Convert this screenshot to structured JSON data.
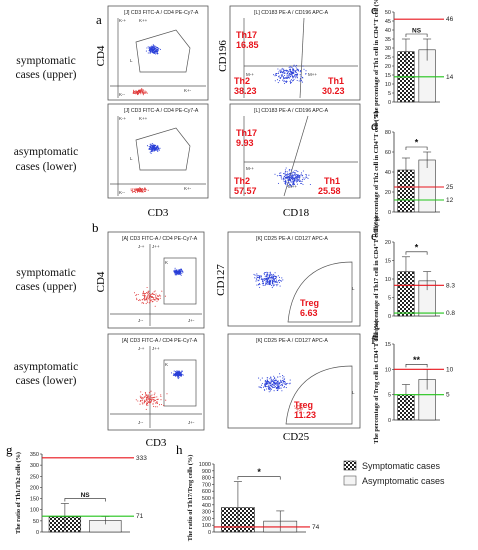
{
  "figure": {
    "colors": {
      "red": "#e8141c",
      "green": "#22c41a",
      "dot_blue": "#2a3fd8",
      "dot_red": "#e03a3a",
      "axis": "#333333",
      "box": "#444444"
    },
    "row_labels": {
      "sym_upper": [
        "symptomatic",
        "cases (upper)"
      ],
      "asym_lower": [
        "asymptomatic",
        "cases (lower)"
      ]
    },
    "panel_letters": {
      "a": "a",
      "b": "b",
      "c": "c",
      "d": "d",
      "e": "e",
      "f": "f",
      "g": "g",
      "h": "h"
    },
    "flow_a": {
      "plot1_title": "[J] CD3 FITC-A / CD4 PE-Cy7-A",
      "plot2_title": "[L] CD183 PE-A / CD196 APC-A",
      "plot3_title": "[J] CD3 FITC-A / CD4 PE-Cy7-A",
      "plot4_title": "[L] CD183 PE-A / CD196 APC-A",
      "xlabel_left": "CD3",
      "ylabel_left": "CD4",
      "xlabel_right": "CD18",
      "ylabel_right": "CD196",
      "upper": {
        "th17_label": "Th17",
        "th17": "16.85",
        "th2_label": "Th2",
        "th2": "38.23",
        "th1_label": "Th1",
        "th1": "30.23"
      },
      "lower": {
        "th17_label": "Th17",
        "th17": "9.93",
        "th2_label": "Th2",
        "th2": "57.57",
        "th1_label": "Th1",
        "th1": "25.58"
      },
      "gate_tags": {
        "kminus": "K-+",
        "kplus": "K++",
        "kmm": "K--",
        "kpm": "K+-",
        "l": "L",
        "mminus": "M-+",
        "mplus": "M++",
        "mmm": "M--",
        "mpm": "M+-"
      }
    },
    "flow_b": {
      "plot1_title": "[A] CD3 FITC-A / CD4 PE-Cy7-A",
      "plot2_title": "[K] CD25 PE-A / CD127 APC-A",
      "plot3_title": "[A] CD3 FITC-A / CD4 PE-Cy7-A",
      "plot4_title": "[K] CD25 PE-A / CD127 APC-A",
      "xlabel_left": "CD3",
      "ylabel_left": "CD4",
      "xlabel_right": "CD25",
      "ylabel_right": "CD127",
      "upper": {
        "treg_label": "Treg",
        "treg": "6.63"
      },
      "lower": {
        "treg_label": "Treg",
        "treg": "11.23"
      },
      "gate_tags": {
        "jminus": "J-+",
        "jplus": "J++",
        "jmm": "J--",
        "jpm": "J+-",
        "k": "K",
        "l": "L"
      }
    },
    "legend": {
      "symptomatic": "Symptomatic cases",
      "asymptomatic": "Asymptomatic cases"
    }
  },
  "chart_data": [
    {
      "panel": "c",
      "type": "bar",
      "categories": [
        "Symptomatic cases",
        "Asymptomatic cases"
      ],
      "values": [
        28,
        29
      ],
      "errors": [
        7,
        6
      ],
      "ylabel": "The percentage of Th1 cell in CD4⁺T cell (%)",
      "ylim": [
        0,
        50
      ],
      "yticks": [
        "0",
        "5",
        "10",
        "15",
        "20",
        "25",
        "30",
        "35",
        "40",
        "45",
        "50"
      ],
      "ref_red": 46,
      "ref_green": 14,
      "ref_red_label": "46",
      "ref_green_label": "14",
      "significance": "NS"
    },
    {
      "panel": "d",
      "type": "bar",
      "categories": [
        "Symptomatic cases",
        "Asymptomatic cases"
      ],
      "values": [
        42,
        52
      ],
      "errors": [
        12,
        8
      ],
      "ylabel": "The percentage of Th2 cell in CD4⁺T cell (%)",
      "ylim": [
        0,
        80
      ],
      "yticks": [
        "0",
        "20",
        "40",
        "60",
        "80"
      ],
      "ref_red": 25,
      "ref_green": 12,
      "ref_red_label": "25",
      "ref_green_label": "12",
      "significance": "*"
    },
    {
      "panel": "e",
      "type": "bar",
      "categories": [
        "Symptomatic cases",
        "Asymptomatic cases"
      ],
      "values": [
        12,
        9.5
      ],
      "errors": [
        4,
        2.5
      ],
      "ylabel": "The percentage of Th17 cell in CD4⁺T cell (%)",
      "ylim": [
        0,
        20
      ],
      "yticks": [
        "0",
        "5",
        "10",
        "15",
        "20"
      ],
      "ref_red": 8.3,
      "ref_green": 0.8,
      "ref_red_label": "8.3",
      "ref_green_label": "0.8",
      "significance": "*"
    },
    {
      "panel": "f",
      "type": "bar",
      "categories": [
        "Symptomatic cases",
        "Asymptomatic cases"
      ],
      "values": [
        5,
        8
      ],
      "errors": [
        2,
        2
      ],
      "ylabel": "The percentage of Treg cell in CD4⁺T cell (%)",
      "ylim": [
        0,
        15
      ],
      "yticks": [
        "0",
        "5",
        "10",
        "15"
      ],
      "ref_red": 10,
      "ref_green": 5,
      "ref_red_label": "10",
      "ref_green_label": "5",
      "significance": "**"
    },
    {
      "panel": "g",
      "type": "bar",
      "categories": [
        "Symptomatic cases",
        "Asymptomatic cases"
      ],
      "values": [
        68,
        52
      ],
      "errors": [
        60,
        18
      ],
      "ylabel": "The ratio of Th1/Th2 cells (%)",
      "ylim": [
        0,
        350
      ],
      "yticks": [
        "0",
        "50",
        "100",
        "150",
        "200",
        "250",
        "300",
        "350"
      ],
      "ref_red": 333,
      "ref_green": 71,
      "ref_red_label": "333",
      "ref_green_label": "71",
      "significance": "NS"
    },
    {
      "panel": "h",
      "type": "bar",
      "categories": [
        "Symptomatic cases",
        "Asymptomatic cases"
      ],
      "values": [
        360,
        160
      ],
      "errors": [
        380,
        150
      ],
      "ylabel": "The ratio of Th17/Treg cells (%)",
      "ylim": [
        0,
        1000
      ],
      "yticks": [
        "0",
        "100",
        "200",
        "300",
        "400",
        "500",
        "600",
        "700",
        "800",
        "900",
        "1000"
      ],
      "ref_red": 74,
      "ref_red_label": "74",
      "significance": "*"
    }
  ]
}
